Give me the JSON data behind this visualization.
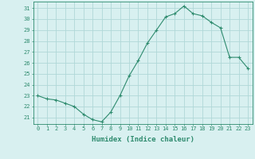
{
  "x": [
    0,
    1,
    2,
    3,
    4,
    5,
    6,
    7,
    8,
    9,
    10,
    11,
    12,
    13,
    14,
    15,
    16,
    17,
    18,
    19,
    20,
    21,
    22,
    23
  ],
  "y": [
    23.0,
    22.7,
    22.6,
    22.3,
    22.0,
    21.3,
    20.8,
    20.6,
    21.5,
    23.0,
    24.8,
    26.2,
    27.8,
    29.0,
    30.2,
    30.5,
    31.2,
    30.5,
    30.3,
    29.7,
    29.2,
    26.5,
    26.5,
    25.5
  ],
  "line_color": "#2e8b6e",
  "marker": "+",
  "bg_color": "#d8f0f0",
  "grid_color": "#b0d8d8",
  "xlabel": "Humidex (Indice chaleur)",
  "ylabel_ticks": [
    21,
    22,
    23,
    24,
    25,
    26,
    27,
    28,
    29,
    30,
    31
  ],
  "xlim": [
    -0.5,
    23.5
  ],
  "ylim": [
    20.4,
    31.6
  ],
  "tick_fontsize": 5.0,
  "xlabel_fontsize": 6.5
}
